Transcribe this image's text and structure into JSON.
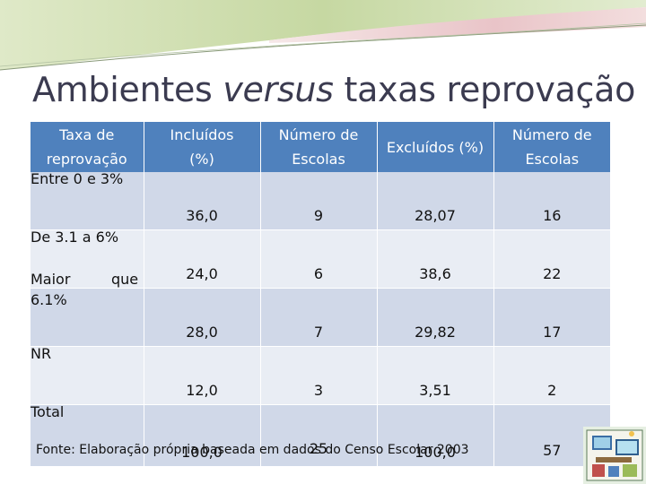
{
  "slide": {
    "title_part1": "Ambientes ",
    "title_part2": "versus",
    "title_part3": " taxas reprovação"
  },
  "table": {
    "headers": [
      {
        "line1": "Taxa de",
        "line2": "reprovação"
      },
      {
        "line1": "Incluídos",
        "line2": "(%)"
      },
      {
        "line1": "Número de",
        "line2": "Escolas"
      },
      {
        "line1": "Excluídos (%)",
        "line2": ""
      },
      {
        "line1": "Número de",
        "line2": "Escolas"
      }
    ],
    "rows": [
      {
        "label": "Entre 0 e 3%",
        "incluidos": "36,0",
        "escolas_incl": "9",
        "excluidos": "28,07",
        "escolas_excl": "16"
      },
      {
        "label": "De 3.1 a 6%",
        "incluidos": "24,0",
        "escolas_incl": "6",
        "excluidos": "38,6",
        "escolas_excl": "22"
      },
      {
        "label_w1": "Maior",
        "label_w2": "que",
        "label_w3": "6.1%",
        "incluidos": "28,0",
        "escolas_incl": "7",
        "excluidos": "29,82",
        "escolas_excl": "17"
      },
      {
        "label": "NR",
        "incluidos": "12,0",
        "escolas_incl": "3",
        "excluidos": "3,51",
        "escolas_excl": "2"
      },
      {
        "label": "Total",
        "incluidos": "100,0",
        "escolas_incl": "25",
        "excluidos": "100,0",
        "escolas_excl": "57"
      }
    ]
  },
  "footer": {
    "source": "Fonte: Elaboração própria baseada em dados do Censo Escolar 2003"
  },
  "icons": {
    "banner": "decorative-wave-banner",
    "logo": "computer-lab-illustration-icon"
  },
  "colors": {
    "header_blue": "#4f81bd",
    "row_odd": "#d0d8e8",
    "row_even": "#e9edf4",
    "title": "#3b3b50"
  }
}
